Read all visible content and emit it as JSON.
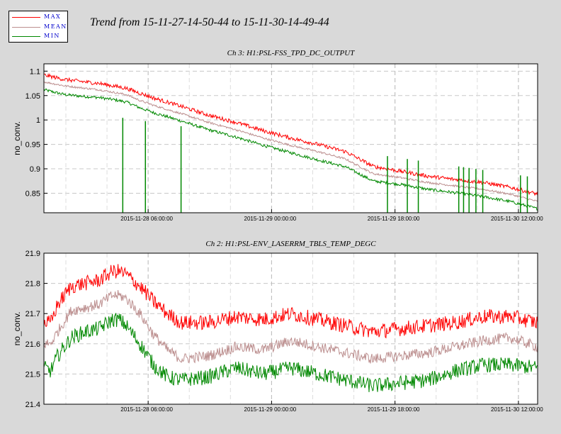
{
  "legend": {
    "items": [
      {
        "label": "MAX",
        "color": "#ff0000"
      },
      {
        "label": "MEAN",
        "color": "#bc8f8f"
      },
      {
        "label": "MIN",
        "color": "#008800"
      }
    ]
  },
  "main_title": "Trend from 15-11-27-14-50-44 to 15-11-30-14-49-44",
  "chart_data": [
    {
      "type": "line",
      "title": "Ch 3: H1:PSL-FSS_TPD_DC_OUTPUT",
      "ylabel": "no_conv.",
      "x_tick_labels": [
        "2015-11-28 06:00:00",
        "2015-11-29 00:00:00",
        "2015-11-29 18:00:00",
        "2015-11-30 12:00:00"
      ],
      "x_tick_hours": [
        15.2,
        33.2,
        51.2,
        69.2
      ],
      "x_range_hours": [
        0,
        72
      ],
      "y_ticks": [
        "0.85",
        "0.9",
        "0.95",
        "1",
        "1.05",
        "1.1"
      ],
      "ylim": [
        0.81,
        1.115
      ],
      "grid": true,
      "x_hours": [
        0,
        3,
        6,
        8,
        10,
        12,
        14,
        16,
        20,
        24,
        28,
        32,
        36,
        40,
        44,
        48,
        52,
        56,
        60,
        64,
        68,
        72
      ],
      "series": [
        {
          "name": "MAX",
          "color": "#ff0000",
          "values": [
            1.092,
            1.083,
            1.078,
            1.075,
            1.07,
            1.065,
            1.055,
            1.045,
            1.028,
            1.01,
            0.995,
            0.978,
            0.963,
            0.95,
            0.935,
            0.905,
            0.895,
            0.885,
            0.878,
            0.872,
            0.862,
            0.848
          ]
        },
        {
          "name": "MEAN",
          "color": "#bc8f8f",
          "values": [
            1.078,
            1.07,
            1.065,
            1.062,
            1.057,
            1.052,
            1.04,
            1.03,
            1.013,
            0.995,
            0.98,
            0.963,
            0.948,
            0.935,
            0.92,
            0.89,
            0.882,
            0.872,
            0.865,
            0.858,
            0.848,
            0.833
          ]
        },
        {
          "name": "MIN",
          "color": "#008800",
          "values": [
            1.062,
            1.052,
            1.048,
            1.046,
            1.042,
            1.037,
            1.025,
            1.015,
            0.998,
            0.98,
            0.965,
            0.948,
            0.933,
            0.918,
            0.904,
            0.875,
            0.868,
            0.858,
            0.851,
            0.843,
            0.833,
            0.818
          ]
        }
      ]
    },
    {
      "type": "line",
      "title": "Ch 2: H1:PSL-ENV_LASERRM_TBLS_TEMP_DEGC",
      "ylabel": "no_conv.",
      "x_tick_labels": [
        "2015-11-28 06:00:00",
        "2015-11-29 00:00:00",
        "2015-11-29 18:00:00",
        "2015-11-30 12:00:00"
      ],
      "x_tick_hours": [
        15.2,
        33.2,
        51.2,
        69.2
      ],
      "x_range_hours": [
        0,
        72
      ],
      "y_ticks": [
        "21.4",
        "21.5",
        "21.6",
        "21.7",
        "21.8",
        "21.9"
      ],
      "ylim": [
        21.4,
        21.9
      ],
      "grid": true,
      "x_hours": [
        0,
        1,
        2,
        4,
        6,
        8,
        10,
        11,
        12,
        14,
        16,
        18,
        20,
        24,
        28,
        32,
        36,
        40,
        44,
        48,
        52,
        56,
        60,
        64,
        68,
        72
      ],
      "series": [
        {
          "name": "MAX",
          "color": "#ff0000",
          "values": [
            21.67,
            21.67,
            21.73,
            21.79,
            21.8,
            21.81,
            21.84,
            21.84,
            21.83,
            21.79,
            21.74,
            21.7,
            21.67,
            21.67,
            21.69,
            21.68,
            21.7,
            21.68,
            21.66,
            21.64,
            21.65,
            21.66,
            21.67,
            21.69,
            21.69,
            21.67
          ]
        },
        {
          "name": "MEAN",
          "color": "#bc8f8f",
          "values": [
            21.6,
            21.6,
            21.64,
            21.71,
            21.72,
            21.73,
            21.76,
            21.76,
            21.75,
            21.7,
            21.63,
            21.58,
            21.55,
            21.56,
            21.59,
            21.58,
            21.61,
            21.59,
            21.57,
            21.55,
            21.56,
            21.57,
            21.59,
            21.61,
            21.62,
            21.59
          ]
        },
        {
          "name": "MIN",
          "color": "#008800",
          "values": [
            21.52,
            21.51,
            21.56,
            21.62,
            21.64,
            21.65,
            21.68,
            21.68,
            21.66,
            21.6,
            21.53,
            21.49,
            21.48,
            21.49,
            21.52,
            21.5,
            21.52,
            21.5,
            21.48,
            21.46,
            21.47,
            21.48,
            21.51,
            21.53,
            21.53,
            21.52
          ]
        }
      ]
    }
  ]
}
